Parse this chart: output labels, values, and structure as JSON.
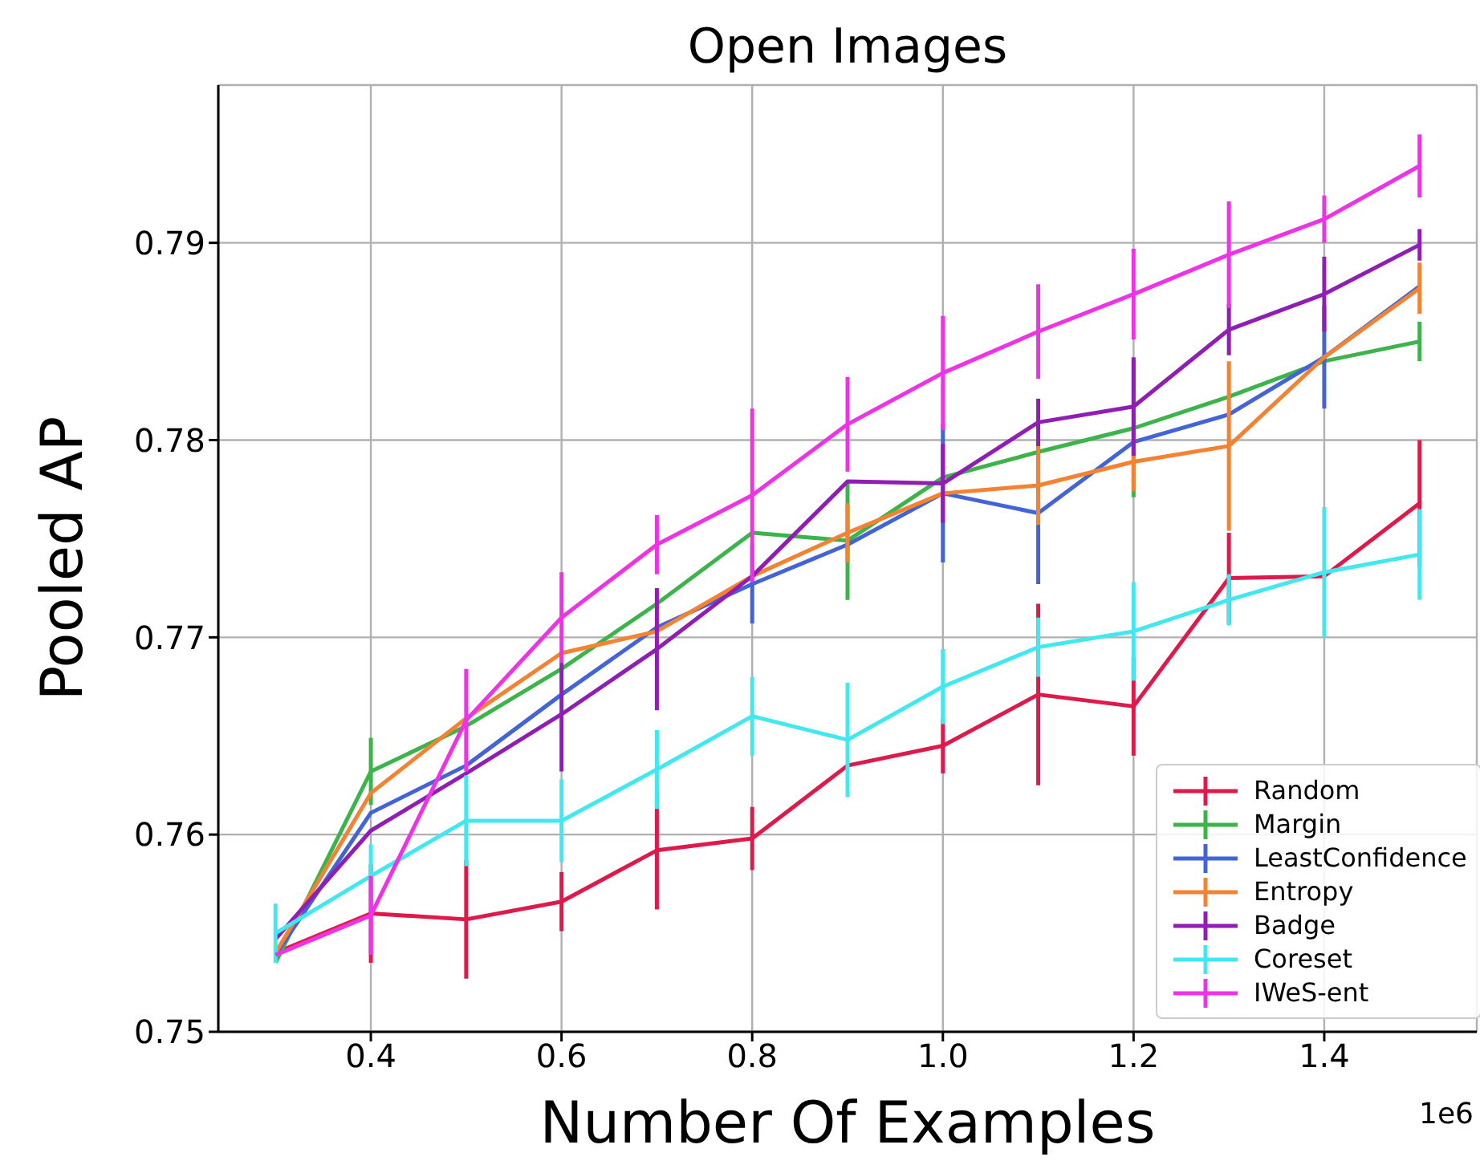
{
  "chart_data": {
    "type": "line",
    "title": "Open Images",
    "xlabel": "Number Of Examples",
    "ylabel": "Pooled AP",
    "annotations": [
      "1e6"
    ],
    "x": [
      0.3,
      0.4,
      0.5,
      0.6,
      0.7,
      0.8,
      0.9,
      1.0,
      1.1,
      1.2,
      1.3,
      1.4,
      1.5
    ],
    "xlim": [
      0.24,
      1.56
    ],
    "xticks": [
      0.4,
      0.6,
      0.8,
      {
        "value": 1.0,
        "label": "1.0"
      },
      1.2,
      1.4
    ],
    "ylim": [
      0.75,
      0.798
    ],
    "yticks": [
      0.75,
      0.76,
      0.77,
      0.78,
      0.79
    ],
    "grid": true,
    "legend": "bottom right",
    "series": [
      {
        "name": "Random",
        "color": "#e0194b",
        "values": [
          0.754,
          0.756,
          0.7557,
          0.7566,
          0.7592,
          0.7598,
          0.7635,
          0.7645,
          0.7671,
          0.7665,
          0.773,
          0.7731,
          0.7768
        ],
        "errors": [
          null,
          0.0025,
          0.003,
          0.0015,
          0.003,
          0.0016,
          null,
          0.0014,
          0.0046,
          0.0025,
          0.0023,
          null,
          0.0032
        ]
      },
      {
        "name": "Margin",
        "color": "#3cb44b",
        "values": [
          0.7535,
          0.7632,
          0.7655,
          0.7684,
          0.7717,
          0.7753,
          0.7749,
          0.7781,
          0.7794,
          0.7806,
          0.7822,
          0.784,
          0.785
        ],
        "errors": [
          null,
          0.0017,
          null,
          null,
          null,
          null,
          0.003,
          null,
          null,
          0.0035,
          null,
          null,
          0.001
        ]
      },
      {
        "name": "LeastConfidence",
        "color": "#4363d8",
        "values": [
          0.7539,
          0.7611,
          0.7635,
          0.7671,
          0.7705,
          0.7727,
          0.7747,
          0.7773,
          0.7763,
          0.7799,
          0.7813,
          0.7842,
          0.7878
        ],
        "errors": [
          null,
          null,
          null,
          null,
          null,
          0.002,
          null,
          0.0035,
          0.0036,
          null,
          null,
          0.0026,
          null
        ]
      },
      {
        "name": "Entropy",
        "color": "#f58231",
        "values": [
          0.754,
          0.7621,
          0.7659,
          0.7692,
          0.7703,
          0.7731,
          0.7753,
          0.7773,
          0.7777,
          0.7789,
          0.7797,
          0.7842,
          0.7877
        ],
        "errors": [
          null,
          null,
          null,
          null,
          null,
          null,
          0.0015,
          null,
          0.002,
          0.0015,
          0.0043,
          null,
          0.0013
        ]
      },
      {
        "name": "Badge",
        "color": "#911eb4",
        "values": [
          0.7547,
          0.7602,
          0.7631,
          0.7661,
          0.7694,
          0.7731,
          0.7779,
          0.7778,
          0.7809,
          0.7817,
          0.7856,
          0.7874,
          0.7899
        ],
        "errors": [
          null,
          null,
          null,
          0.0029,
          0.0031,
          null,
          null,
          0.002,
          0.0012,
          0.0025,
          0.0013,
          0.0019,
          0.0008
        ]
      },
      {
        "name": "Coreset",
        "color": "#42e8f0",
        "values": [
          0.755,
          0.7579,
          0.7607,
          0.7607,
          0.7633,
          0.766,
          0.7648,
          0.7675,
          0.7695,
          0.7703,
          0.7719,
          0.7733,
          0.7742
        ],
        "errors": [
          0.0015,
          0.0016,
          0.0023,
          0.0021,
          0.002,
          0.002,
          0.0029,
          0.0019,
          0.0015,
          0.0025,
          0.0013,
          0.0033,
          0.0023
        ]
      },
      {
        "name": "IWeS-ent",
        "color": "#f032e6",
        "values": [
          0.7539,
          0.7559,
          0.7658,
          0.771,
          0.7747,
          0.7772,
          0.7808,
          0.7834,
          0.7855,
          0.7874,
          0.7894,
          0.7912,
          0.7939
        ],
        "errors": [
          null,
          0.002,
          0.0026,
          0.0023,
          0.0015,
          0.0044,
          0.0024,
          0.0029,
          0.0024,
          0.0023,
          0.0027,
          0.0012,
          0.0016
        ]
      }
    ]
  }
}
